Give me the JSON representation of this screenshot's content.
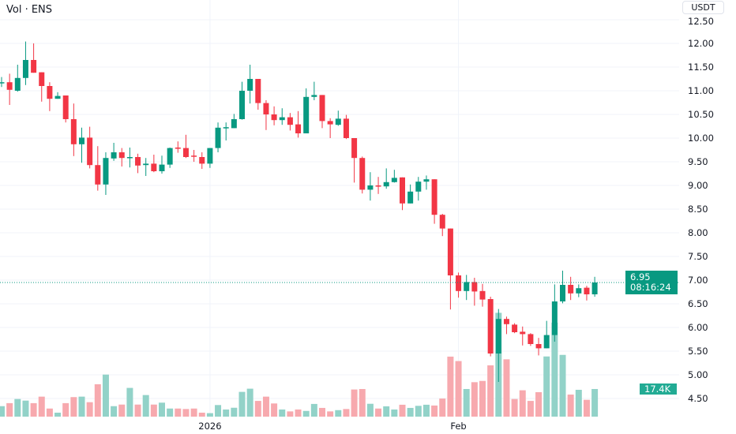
{
  "header": {
    "title": "Vol · ENS",
    "currency_button": "USDT"
  },
  "price_tag": {
    "price": "6.95",
    "countdown": "08:16:24"
  },
  "volume_tag": "17.4K",
  "colors": {
    "up": "#089981",
    "down": "#F23645",
    "up_volume": "#92d2c8",
    "down_volume": "#f7a9ae",
    "grid": "#f0f3fa"
  },
  "chart_data": {
    "type": "candlestick",
    "title": "Vol · ENS",
    "ylabel": "USDT",
    "ylim": [
      4.3,
      12.5
    ],
    "y_ticks": [
      "12.50",
      "12.00",
      "11.50",
      "11.00",
      "10.50",
      "10.00",
      "9.50",
      "9.00",
      "8.50",
      "8.00",
      "7.50",
      "7.00",
      "6.50",
      "6.00",
      "5.50",
      "5.00",
      "4.50"
    ],
    "x_labels": [
      {
        "index": 26,
        "label": "2026"
      },
      {
        "index": 57,
        "label": "Feb"
      }
    ],
    "last_price": 6.95,
    "volume_unit": "K",
    "candles_ohlcv": [
      [
        11.17,
        11.29,
        11.08,
        11.18,
        6.6
      ],
      [
        11.18,
        11.36,
        10.7,
        11.02,
        8.5
      ],
      [
        11.0,
        11.55,
        10.98,
        11.27,
        11.1
      ],
      [
        11.27,
        12.04,
        11.12,
        11.65,
        10.1
      ],
      [
        11.65,
        12.0,
        11.38,
        11.38,
        8.5
      ],
      [
        11.39,
        11.39,
        10.77,
        11.1,
        12.6
      ],
      [
        11.1,
        11.18,
        10.57,
        10.83,
        5.1
      ],
      [
        10.83,
        10.97,
        10.83,
        10.89,
        2.5
      ],
      [
        10.9,
        10.9,
        10.33,
        10.4,
        8.5
      ],
      [
        10.4,
        10.73,
        9.62,
        9.87,
        12.3
      ],
      [
        9.87,
        10.22,
        9.48,
        10.01,
        12.6
      ],
      [
        10.01,
        10.24,
        9.36,
        9.43,
        9.1
      ],
      [
        9.43,
        9.83,
        8.89,
        9.02,
        20.4
      ],
      [
        9.02,
        9.7,
        8.8,
        9.58,
        26.5
      ],
      [
        9.57,
        9.9,
        9.52,
        9.7,
        6.6
      ],
      [
        9.7,
        9.79,
        9.4,
        9.58,
        7.6
      ],
      [
        9.59,
        9.8,
        9.38,
        9.6,
        18.1
      ],
      [
        9.6,
        9.67,
        9.26,
        9.42,
        7.6
      ],
      [
        9.43,
        9.58,
        9.2,
        9.46,
        13.6
      ],
      [
        9.46,
        9.65,
        9.28,
        9.3,
        7.6
      ],
      [
        9.3,
        9.63,
        9.25,
        9.44,
        8.8
      ],
      [
        9.44,
        9.8,
        9.37,
        9.79,
        5.1
      ],
      [
        9.8,
        9.93,
        9.69,
        9.79,
        5.1
      ],
      [
        9.79,
        10.07,
        9.58,
        9.6,
        4.8
      ],
      [
        9.63,
        9.75,
        9.5,
        9.62,
        5.1
      ],
      [
        9.6,
        9.7,
        9.35,
        9.46,
        2.5
      ],
      [
        9.46,
        9.79,
        9.37,
        9.79,
        2.2
      ],
      [
        9.79,
        10.33,
        9.7,
        10.22,
        7.3
      ],
      [
        10.22,
        10.33,
        9.95,
        10.23,
        4.5
      ],
      [
        10.21,
        10.51,
        10.21,
        10.4,
        5.6
      ],
      [
        10.4,
        11.19,
        10.39,
        11.0,
        15.6
      ],
      [
        11.0,
        11.55,
        10.73,
        11.25,
        17.6
      ],
      [
        11.25,
        11.25,
        10.6,
        10.74,
        9.9
      ],
      [
        10.74,
        10.8,
        10.17,
        10.5,
        12.6
      ],
      [
        10.5,
        10.67,
        10.27,
        10.38,
        8.3
      ],
      [
        10.38,
        10.63,
        10.28,
        10.44,
        4.5
      ],
      [
        10.44,
        10.53,
        10.16,
        10.28,
        3.3
      ],
      [
        10.29,
        10.57,
        10.01,
        10.1,
        4.5
      ],
      [
        10.1,
        11.05,
        10.1,
        10.87,
        3.6
      ],
      [
        10.87,
        11.19,
        10.8,
        10.91,
        8.0
      ],
      [
        10.91,
        10.91,
        10.21,
        10.36,
        5.5
      ],
      [
        10.36,
        10.42,
        10.0,
        10.29,
        3.3
      ],
      [
        10.28,
        10.58,
        10.26,
        10.41,
        4.1
      ],
      [
        10.41,
        10.49,
        9.98,
        10.0,
        4.8
      ],
      [
        10.0,
        10.0,
        9.06,
        9.58,
        17.1
      ],
      [
        9.58,
        9.61,
        8.83,
        8.91,
        17.4
      ],
      [
        8.91,
        9.28,
        8.68,
        9.0,
        8.1
      ],
      [
        9.0,
        9.18,
        8.82,
        8.98,
        5.1
      ],
      [
        8.98,
        9.36,
        8.93,
        9.07,
        6.5
      ],
      [
        9.07,
        9.33,
        9.06,
        9.16,
        4.5
      ],
      [
        9.17,
        9.17,
        8.48,
        8.62,
        7.5
      ],
      [
        8.62,
        9.02,
        8.62,
        8.87,
        5.5
      ],
      [
        8.87,
        9.18,
        8.68,
        9.08,
        6.8
      ],
      [
        9.08,
        9.21,
        8.91,
        9.13,
        7.5
      ],
      [
        9.13,
        9.13,
        8.19,
        8.38,
        7.0
      ],
      [
        8.38,
        8.4,
        7.93,
        8.09,
        11.4
      ],
      [
        8.09,
        8.09,
        6.38,
        7.1,
        37.8
      ],
      [
        7.1,
        7.16,
        6.63,
        6.77,
        35.0
      ],
      [
        6.77,
        7.11,
        6.58,
        6.96,
        17.4
      ],
      [
        6.96,
        7.05,
        6.46,
        6.76,
        21.7
      ],
      [
        6.77,
        6.92,
        6.44,
        6.59,
        22.5
      ],
      [
        6.6,
        6.65,
        5.39,
        5.45,
        32.3
      ],
      [
        5.45,
        6.39,
        4.85,
        6.18,
        65.4
      ],
      [
        6.18,
        6.23,
        5.86,
        6.07,
        36.1
      ],
      [
        6.06,
        6.09,
        5.88,
        5.9,
        11.1
      ],
      [
        5.91,
        6.02,
        5.62,
        5.86,
        16.6
      ],
      [
        5.86,
        5.88,
        5.61,
        5.65,
        9.9
      ],
      [
        5.65,
        5.78,
        5.41,
        5.56,
        15.4
      ],
      [
        5.56,
        6.14,
        5.56,
        5.84,
        37.9
      ],
      [
        5.84,
        6.91,
        5.7,
        6.55,
        59.2
      ],
      [
        6.55,
        7.2,
        6.51,
        6.9,
        38.9
      ],
      [
        6.9,
        7.07,
        6.58,
        6.72,
        13.9
      ],
      [
        6.72,
        6.91,
        6.64,
        6.83,
        16.9
      ],
      [
        6.84,
        6.88,
        6.57,
        6.7,
        10.6
      ],
      [
        6.7,
        7.07,
        6.65,
        6.95,
        17.4
      ]
    ]
  }
}
